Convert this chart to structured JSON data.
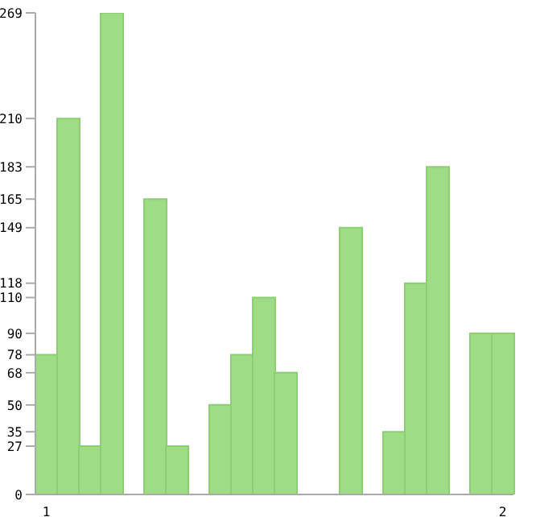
{
  "chart_data": {
    "type": "bar",
    "categories": [
      "1",
      null,
      null,
      null,
      null,
      null,
      null,
      null,
      null,
      null,
      null,
      null,
      null,
      null,
      null,
      null,
      null,
      null,
      null,
      null,
      null,
      "2"
    ],
    "values": [
      78,
      210,
      27,
      269,
      0,
      165,
      27,
      0,
      50,
      78,
      110,
      68,
      0,
      0,
      149,
      0,
      35,
      118,
      183,
      0,
      90,
      90
    ],
    "color": "#9edc85",
    "ylim": [
      0,
      269
    ],
    "yticks": [
      0,
      27,
      35,
      50,
      68,
      78,
      90,
      110,
      118,
      149,
      165,
      183,
      210,
      269
    ]
  }
}
